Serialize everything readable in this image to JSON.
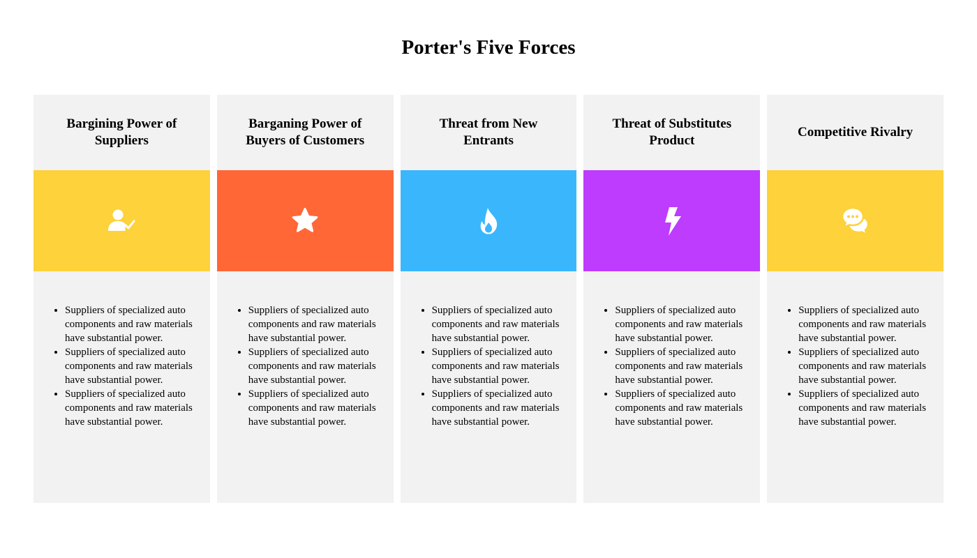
{
  "title": "Porter's Five Forces",
  "colors": {
    "card_background": "#f2f2f2",
    "yellow": "#fdd23a",
    "orange": "#ff6737",
    "blue": "#3ab6fd",
    "purple": "#bd3cfd"
  },
  "forces": [
    {
      "title": "Bargining Power of Suppliers",
      "icon": "user-check-icon",
      "color": "#fdd23a",
      "bullets": [
        "Suppliers of specialized auto components and raw materials have substantial power.",
        "Suppliers of specialized auto components and raw materials have substantial power.",
        "Suppliers of specialized auto components and raw materials have substantial power."
      ]
    },
    {
      "title": "Barganing Power of Buyers of Customers",
      "icon": "star-icon",
      "color": "#ff6737",
      "bullets": [
        "Suppliers of specialized auto components and raw materials have substantial power.",
        "Suppliers of specialized auto components and raw materials have substantial power.",
        "Suppliers of specialized auto components and raw materials have substantial power."
      ]
    },
    {
      "title": "Threat from New Entrants",
      "icon": "fire-icon",
      "color": "#3ab6fd",
      "bullets": [
        "Suppliers of specialized auto components and raw materials have substantial power.",
        "Suppliers of specialized auto components and raw materials have substantial power.",
        "Suppliers of specialized auto components and raw materials have substantial power."
      ]
    },
    {
      "title": "Threat of Substitutes Product",
      "icon": "lightning-bolt-icon",
      "color": "#bd3cfd",
      "bullets": [
        "Suppliers of specialized auto components and raw materials have substantial power.",
        "Suppliers of specialized auto components and raw materials have substantial power.",
        "Suppliers of specialized auto components and raw materials have substantial power."
      ]
    },
    {
      "title": "Competitive Rivalry",
      "icon": "chat-bubbles-icon",
      "color": "#fdd23a",
      "bullets": [
        "Suppliers of specialized auto components and raw materials have substantial power.",
        "Suppliers of specialized auto components and raw materials have substantial power.",
        "Suppliers of specialized auto components and raw materials have substantial power."
      ]
    }
  ]
}
